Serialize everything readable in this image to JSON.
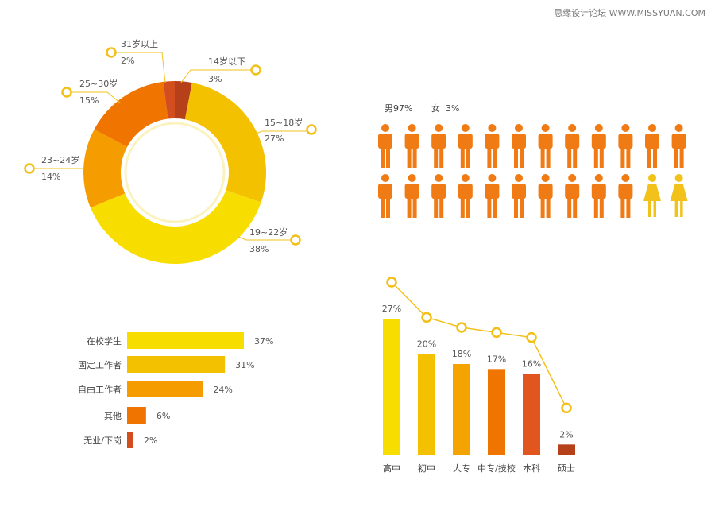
{
  "watermark": "思缘设计论坛 WWW.MISSYUAN.COM",
  "colors": {
    "leader": "#f3c01a",
    "male": "#f07a13",
    "female": "#f2c21b",
    "donut_inner": "#faf3c0"
  },
  "chart_data": [
    {
      "type": "pie",
      "variant": "donut",
      "slices": [
        {
          "label": "14岁以下",
          "value": 3,
          "display": "3%",
          "color": "#b5401a"
        },
        {
          "label": "15~18岁",
          "value": 27,
          "display": "27%",
          "color": "#f3c100"
        },
        {
          "label": "19~22岁",
          "value": 38,
          "display": "38%",
          "color": "#f8de00"
        },
        {
          "label": "23~24岁",
          "value": 14,
          "display": "14%",
          "color": "#f59c00"
        },
        {
          "label": "25~30岁",
          "value": 15,
          "display": "15%",
          "color": "#f07400"
        },
        {
          "label": "31岁以上",
          "value": 2,
          "display": "2%",
          "color": "#d24e1e"
        }
      ]
    },
    {
      "type": "pictogram",
      "legend": [
        {
          "label": "男97%",
          "value": 97
        },
        {
          "label": "女",
          "value_text": "3%",
          "value": 3
        }
      ],
      "icons_total": 24,
      "male_icons": 22,
      "female_icons": 2
    },
    {
      "type": "bar",
      "orientation": "horizontal",
      "categories": [
        "在校学生",
        "固定工作者",
        "自由工作者",
        "其他",
        "无业/下岗"
      ],
      "values": [
        37,
        31,
        24,
        6,
        2
      ],
      "value_labels": [
        "37%",
        "31%",
        "24%",
        "6%",
        "2%"
      ],
      "colors": [
        "#f8de00",
        "#f3c100",
        "#f59c00",
        "#f07400",
        "#d24e1e"
      ]
    },
    {
      "type": "bar",
      "orientation": "vertical",
      "with_line": true,
      "categories": [
        "高中",
        "初中",
        "大专",
        "中专/技校",
        "本科",
        "硕士"
      ],
      "values": [
        27,
        20,
        18,
        17,
        16,
        2
      ],
      "value_labels": [
        "27%",
        "20%",
        "18%",
        "17%",
        "16%",
        "2%"
      ],
      "colors": [
        "#f8de00",
        "#f3c100",
        "#f5a300",
        "#f07400",
        "#e0561e",
        "#b5401a"
      ]
    }
  ]
}
